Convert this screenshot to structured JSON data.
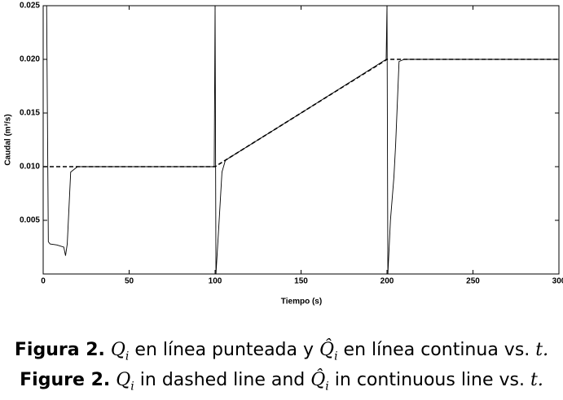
{
  "chart_data": {
    "type": "line",
    "x_label": "Tiempo (s)",
    "y_label": "Caudal (m³/s)",
    "xlim": [
      0,
      300
    ],
    "xticks": [
      0,
      50,
      100,
      150,
      200,
      250,
      300
    ],
    "ylim": [
      0,
      0.025
    ],
    "yticks": [
      0.005,
      {
        "value": 0.01,
        "label": "0.010"
      },
      0.015,
      {
        "value": 0.02,
        "label": "0.020"
      },
      0.025
    ],
    "series": [
      {
        "color": "#000000",
        "dashed": true,
        "x": [
          0,
          100,
          200,
          300
        ],
        "values": [
          0.01,
          0.01,
          0.02,
          0.02
        ]
      },
      {
        "color": "#000000",
        "dashed": false,
        "x": [
          2,
          3,
          4,
          8,
          12,
          13,
          14,
          16,
          20,
          99.5,
          100,
          100.5,
          102,
          104,
          106,
          150,
          199.5,
          200,
          200.5,
          202,
          204,
          205,
          207,
          210,
          300
        ],
        "values": [
          0.025,
          0.003,
          0.0028,
          0.0027,
          0.0025,
          0.0017,
          0.0028,
          0.0095,
          0.01,
          0.01,
          0.025,
          0,
          0.004,
          0.0095,
          0.0106,
          0.015,
          0.02,
          0.025,
          0,
          0.005,
          0.009,
          0.012,
          0.0198,
          0.02,
          0.02
        ]
      }
    ]
  },
  "caption": [
    [
      "Figura 2.",
      "Q",
      "i",
      "en línea punteada y",
      "Q̂",
      "i",
      "en línea continua vs.",
      "t."
    ],
    [
      "Figure 2.",
      "Q",
      "i",
      "in dashed line and",
      "Q̂",
      "i",
      "in continuous line vs.",
      "t."
    ]
  ]
}
